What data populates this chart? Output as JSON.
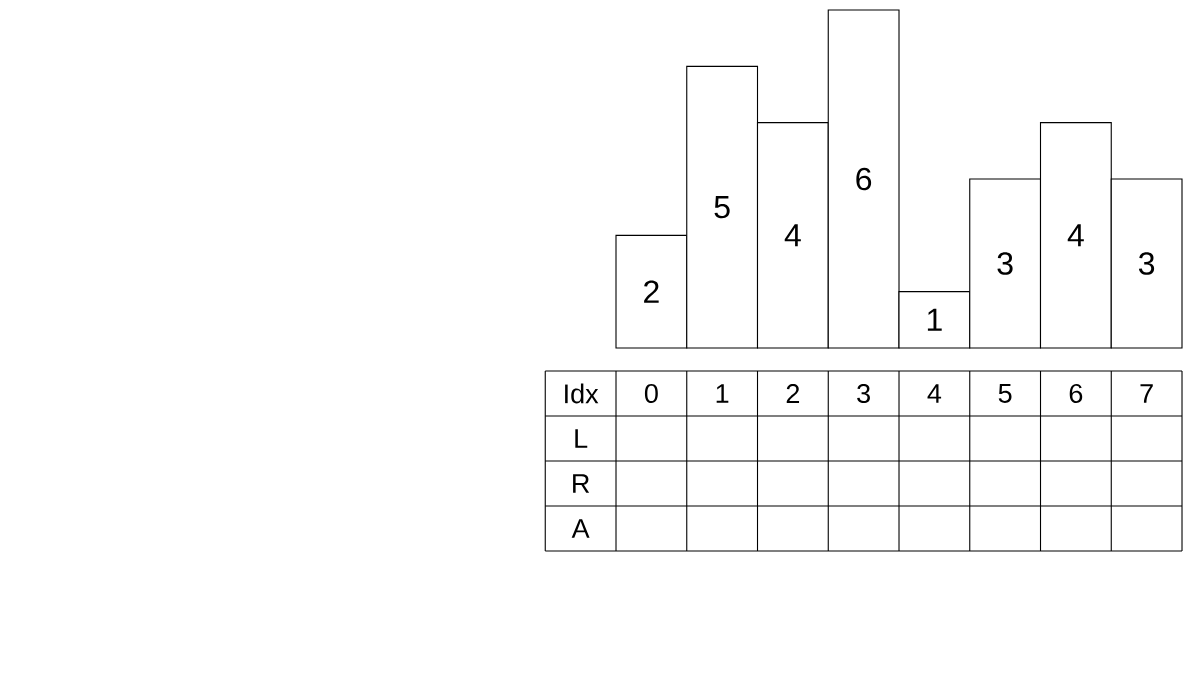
{
  "chart_data": {
    "type": "bar",
    "categories": [
      "0",
      "1",
      "2",
      "3",
      "4",
      "5",
      "6",
      "7"
    ],
    "values": [
      2,
      5,
      4,
      6,
      1,
      3,
      4,
      3
    ],
    "color": "#ffffff",
    "data_labels": true,
    "xlabel": "Idx",
    "annotations": [
      "L",
      "R",
      "A"
    ]
  }
}
